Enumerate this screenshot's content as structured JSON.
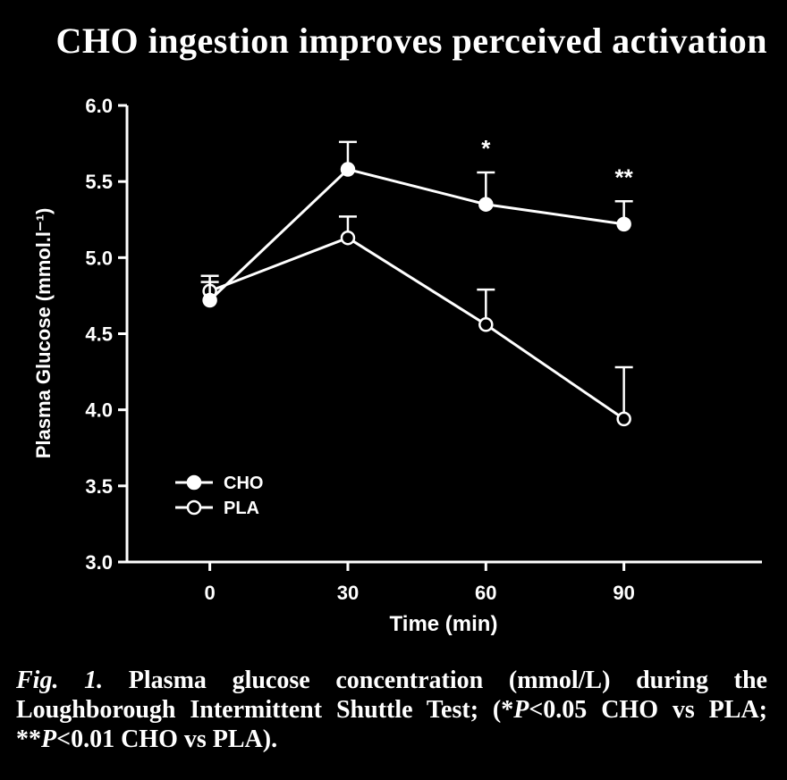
{
  "title": "CHO ingestion improves perceived activation",
  "chart_data": {
    "type": "line",
    "x": [
      0,
      30,
      60,
      90
    ],
    "xlabel": "Time (min)",
    "ylabel": "Plasma Glucose (mmol.l⁻¹)",
    "ylim": [
      3.0,
      6.0
    ],
    "xlim": [
      -18,
      120
    ],
    "xticks": [
      "0",
      "30",
      "60",
      "90"
    ],
    "yticks": [
      "3.0",
      "3.5",
      "4.0",
      "4.5",
      "5.0",
      "5.5",
      "6.0"
    ],
    "series": [
      {
        "name": "CHO",
        "marker": "filled-circle",
        "values": [
          4.72,
          5.58,
          5.35,
          5.22
        ],
        "error_upper": [
          0.12,
          0.18,
          0.21,
          0.15
        ]
      },
      {
        "name": "PLA",
        "marker": "open-circle",
        "values": [
          4.78,
          5.13,
          4.56,
          3.94
        ],
        "error_upper": [
          0.1,
          0.14,
          0.23,
          0.34
        ]
      }
    ],
    "annotations": [
      {
        "x": 60,
        "text": "*"
      },
      {
        "x": 90,
        "text": "**"
      }
    ],
    "legend": "bottom-left"
  },
  "caption": {
    "label": "Fig. 1.",
    "text1": " Plasma glucose concentration (mmol/L) during the Loughborough Intermittent Shuttle Test; (*",
    "p1": "P",
    "text2": "<0.05 CHO vs PLA; **",
    "p2": "P",
    "text3": "<0.01 CHO vs PLA)."
  }
}
